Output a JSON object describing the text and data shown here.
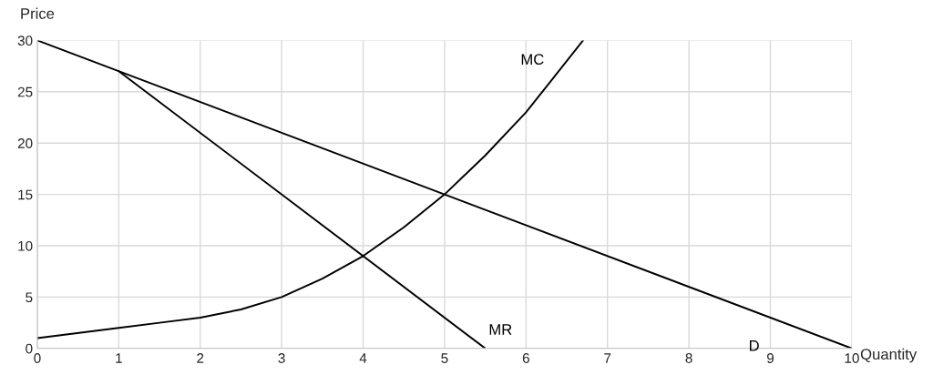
{
  "chart_data": {
    "type": "line",
    "xlabel": "Quantity",
    "ylabel": "Price",
    "series": [
      {
        "name": "D",
        "color": "#000000",
        "x": [
          0,
          10
        ],
        "values": [
          30,
          0
        ]
      },
      {
        "name": "MR",
        "color": "#000000",
        "x": [
          1,
          5.5
        ],
        "values": [
          27,
          0
        ]
      },
      {
        "name": "MC",
        "color": "#000000",
        "x": [
          0,
          1,
          1.5,
          2,
          2.5,
          3,
          3.5,
          4,
          4.5,
          5,
          5.5,
          6,
          6.3,
          6.7
        ],
        "values": [
          1,
          2,
          2.5,
          3,
          3.8,
          5,
          6.8,
          9,
          11.8,
          15,
          18.8,
          23,
          26,
          30
        ]
      }
    ],
    "xlim": [
      0,
      10
    ],
    "ylim": [
      0,
      30
    ],
    "xticks": [
      0,
      1,
      2,
      3,
      4,
      5,
      6,
      7,
      8,
      9,
      10
    ],
    "yticks": [
      0,
      5,
      10,
      15,
      20,
      25,
      30
    ],
    "grid": true,
    "marker": "none",
    "line_style": "solid"
  }
}
